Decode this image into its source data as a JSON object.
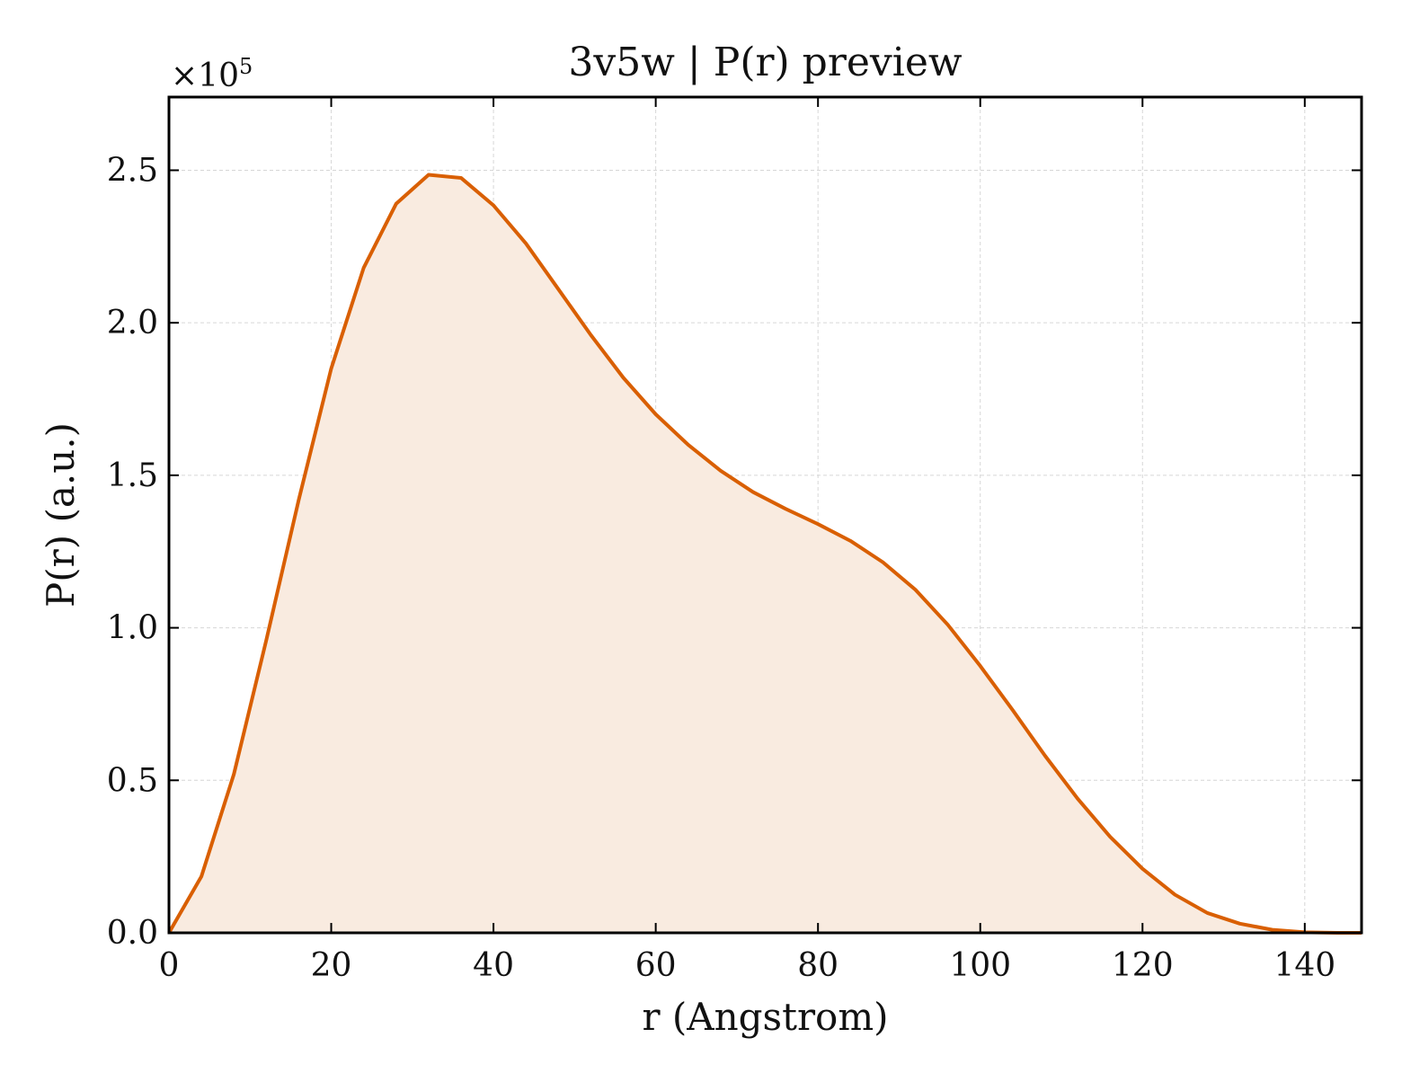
{
  "chart_data": {
    "type": "area",
    "title": "3v5w | P(r) preview",
    "xlabel": "r (Angstrom)",
    "ylabel": "P(r) (a.u.)",
    "y_multiplier": "×10",
    "y_multiplier_exponent": "5",
    "xlim": [
      0,
      147
    ],
    "ylim": [
      0,
      2.74
    ],
    "y_scale_factor": 100000,
    "x_ticks": [
      0,
      20,
      40,
      60,
      80,
      100,
      120,
      140
    ],
    "x_tick_labels": [
      "0",
      "20",
      "40",
      "60",
      "80",
      "100",
      "120",
      "140"
    ],
    "y_ticks": [
      0.0,
      0.5,
      1.0,
      1.5,
      2.0,
      2.5
    ],
    "y_tick_labels": [
      "0.0",
      "0.5",
      "1.0",
      "1.5",
      "2.0",
      "2.5"
    ],
    "grid": true,
    "color": "#d95f02",
    "fill_color": "#f9ebe0",
    "series": [
      {
        "x": [
          0,
          4,
          8,
          12,
          16,
          20,
          24,
          28,
          32,
          36,
          40,
          44,
          48,
          52,
          56,
          60,
          64,
          68,
          72,
          76,
          80,
          84,
          88,
          92,
          96,
          100,
          104,
          108,
          112,
          116,
          120,
          124,
          128,
          132,
          136,
          140,
          144,
          147
        ],
        "values": [
          0.0,
          0.185,
          0.52,
          0.96,
          1.42,
          1.85,
          2.18,
          2.39,
          2.485,
          2.475,
          2.385,
          2.26,
          2.11,
          1.96,
          1.82,
          1.7,
          1.6,
          1.515,
          1.445,
          1.39,
          1.34,
          1.285,
          1.215,
          1.125,
          1.01,
          0.875,
          0.73,
          0.58,
          0.44,
          0.315,
          0.21,
          0.125,
          0.065,
          0.03,
          0.01,
          0.002,
          0.0,
          0.0
        ]
      }
    ]
  }
}
